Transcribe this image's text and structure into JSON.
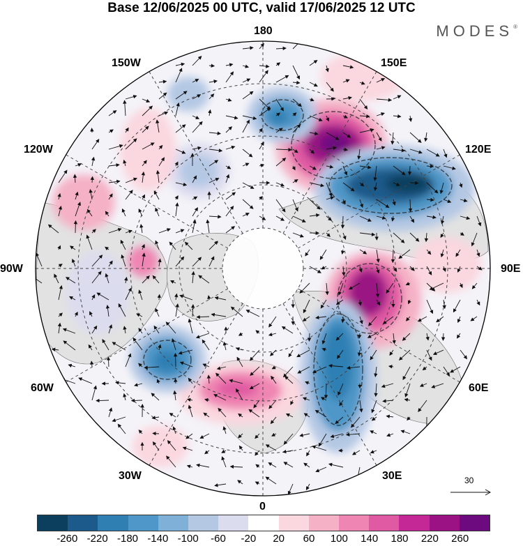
{
  "header": {
    "title": "Base 12/06/2025 00 UTC, valid 17/06/2025 12 UTC",
    "brand": "MODES"
  },
  "map": {
    "projection": "north polar stereographic",
    "longitude_labels": [
      "180",
      "150E",
      "120E",
      "90E",
      "60E",
      "30E",
      "0",
      "30W",
      "60W",
      "90W",
      "120W",
      "150W"
    ],
    "anomalies": [
      {
        "name": "east-siberia-high",
        "value": 260,
        "color": "#6d0a80"
      },
      {
        "name": "central-asia-low",
        "value": -260,
        "color": "#1b5a8a"
      },
      {
        "name": "west-siberia-high",
        "value": 220,
        "color": "#9a1283"
      },
      {
        "name": "europe-low",
        "value": -180,
        "color": "#2f7fb3"
      },
      {
        "name": "atlantic-high",
        "value": 140,
        "color": "#e763a6"
      },
      {
        "name": "greenland-low",
        "value": -180,
        "color": "#2f7fb3"
      },
      {
        "name": "pacific-low",
        "value": -140,
        "color": "#4f97c8"
      },
      {
        "name": "alaska-low",
        "value": -100,
        "color": "#9bbfe0"
      },
      {
        "name": "hudson-high",
        "value": 140,
        "color": "#e763a6"
      },
      {
        "name": "nw-america-high",
        "value": 100,
        "color": "#f2a6c5"
      }
    ]
  },
  "colorbar": {
    "levels": [
      "-260",
      "-220",
      "-180",
      "-140",
      "-100",
      "-60",
      "-20",
      "20",
      "60",
      "100",
      "140",
      "180",
      "220",
      "260"
    ],
    "colors": [
      "#0c3f5e",
      "#1b5a8a",
      "#2f7fb3",
      "#4f97c8",
      "#7eb0d8",
      "#b4c8e4",
      "#dcdcef",
      "#ffffff",
      "#fbd7df",
      "#f5b1c6",
      "#ef85b2",
      "#e05aa3",
      "#c42896",
      "#9a1283",
      "#6d0a80"
    ]
  },
  "vector_reference": {
    "label": "30"
  }
}
